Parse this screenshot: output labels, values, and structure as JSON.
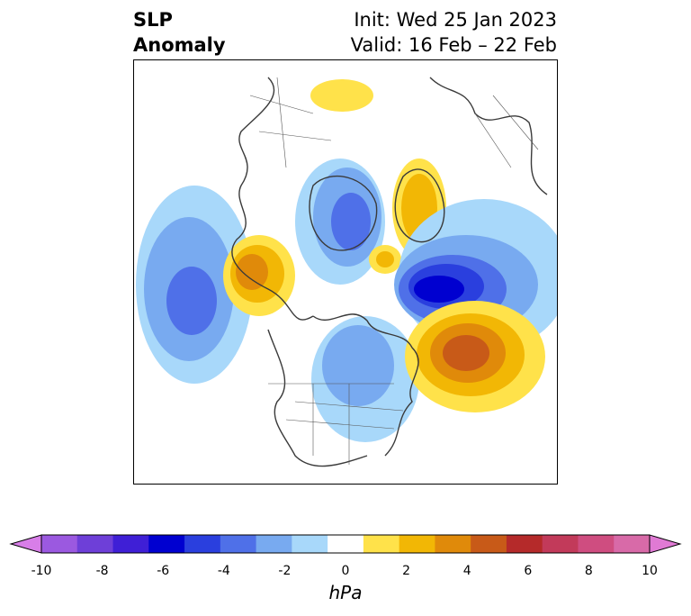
{
  "header": {
    "title_line1": "SLP",
    "title_line2": "Anomaly",
    "init": "Init: Wed 25 Jan 2023",
    "valid": "Valid: 16 Feb – 22 Feb"
  },
  "map": {
    "projection": "polar stereographic",
    "region": "North Atlantic / North America / Arctic",
    "features": [
      {
        "name": "positive-anomaly-north-atlantic",
        "value_hpa": 6,
        "label": "high"
      },
      {
        "name": "negative-anomaly-greenland-sea",
        "value_hpa": -6,
        "label": "low"
      },
      {
        "name": "negative-anomaly-north-pacific",
        "value_hpa": -5,
        "label": "low"
      },
      {
        "name": "positive-anomaly-alaska",
        "value_hpa": 4,
        "label": "high"
      },
      {
        "name": "negative-anomaly-siberia",
        "value_hpa": -4,
        "label": "low"
      },
      {
        "name": "positive-anomaly-arctic",
        "value_hpa": 3,
        "label": "high"
      },
      {
        "name": "negative-anomaly-eastern-north-america",
        "value_hpa": -3,
        "label": "low"
      },
      {
        "name": "positive-anomaly-europe-north",
        "value_hpa": 2,
        "label": "high"
      }
    ]
  },
  "colorbar": {
    "units": "hPa",
    "ticks": [
      "-10",
      "-8",
      "-6",
      "-4",
      "-2",
      "0",
      "2",
      "4",
      "6",
      "8",
      "10"
    ],
    "colors": [
      "#d87ee8",
      "#9b59e0",
      "#6e3fd8",
      "#3f1fd6",
      "#0000d0",
      "#2a3fde",
      "#4f70e8",
      "#78aaf0",
      "#a8d8fa",
      "#ffffff",
      "#ffe24a",
      "#f2b705",
      "#e08a0a",
      "#c85a18",
      "#b52a2a",
      "#c23a5a",
      "#cf4d80",
      "#d86aa8",
      "#e07ad4"
    ]
  }
}
